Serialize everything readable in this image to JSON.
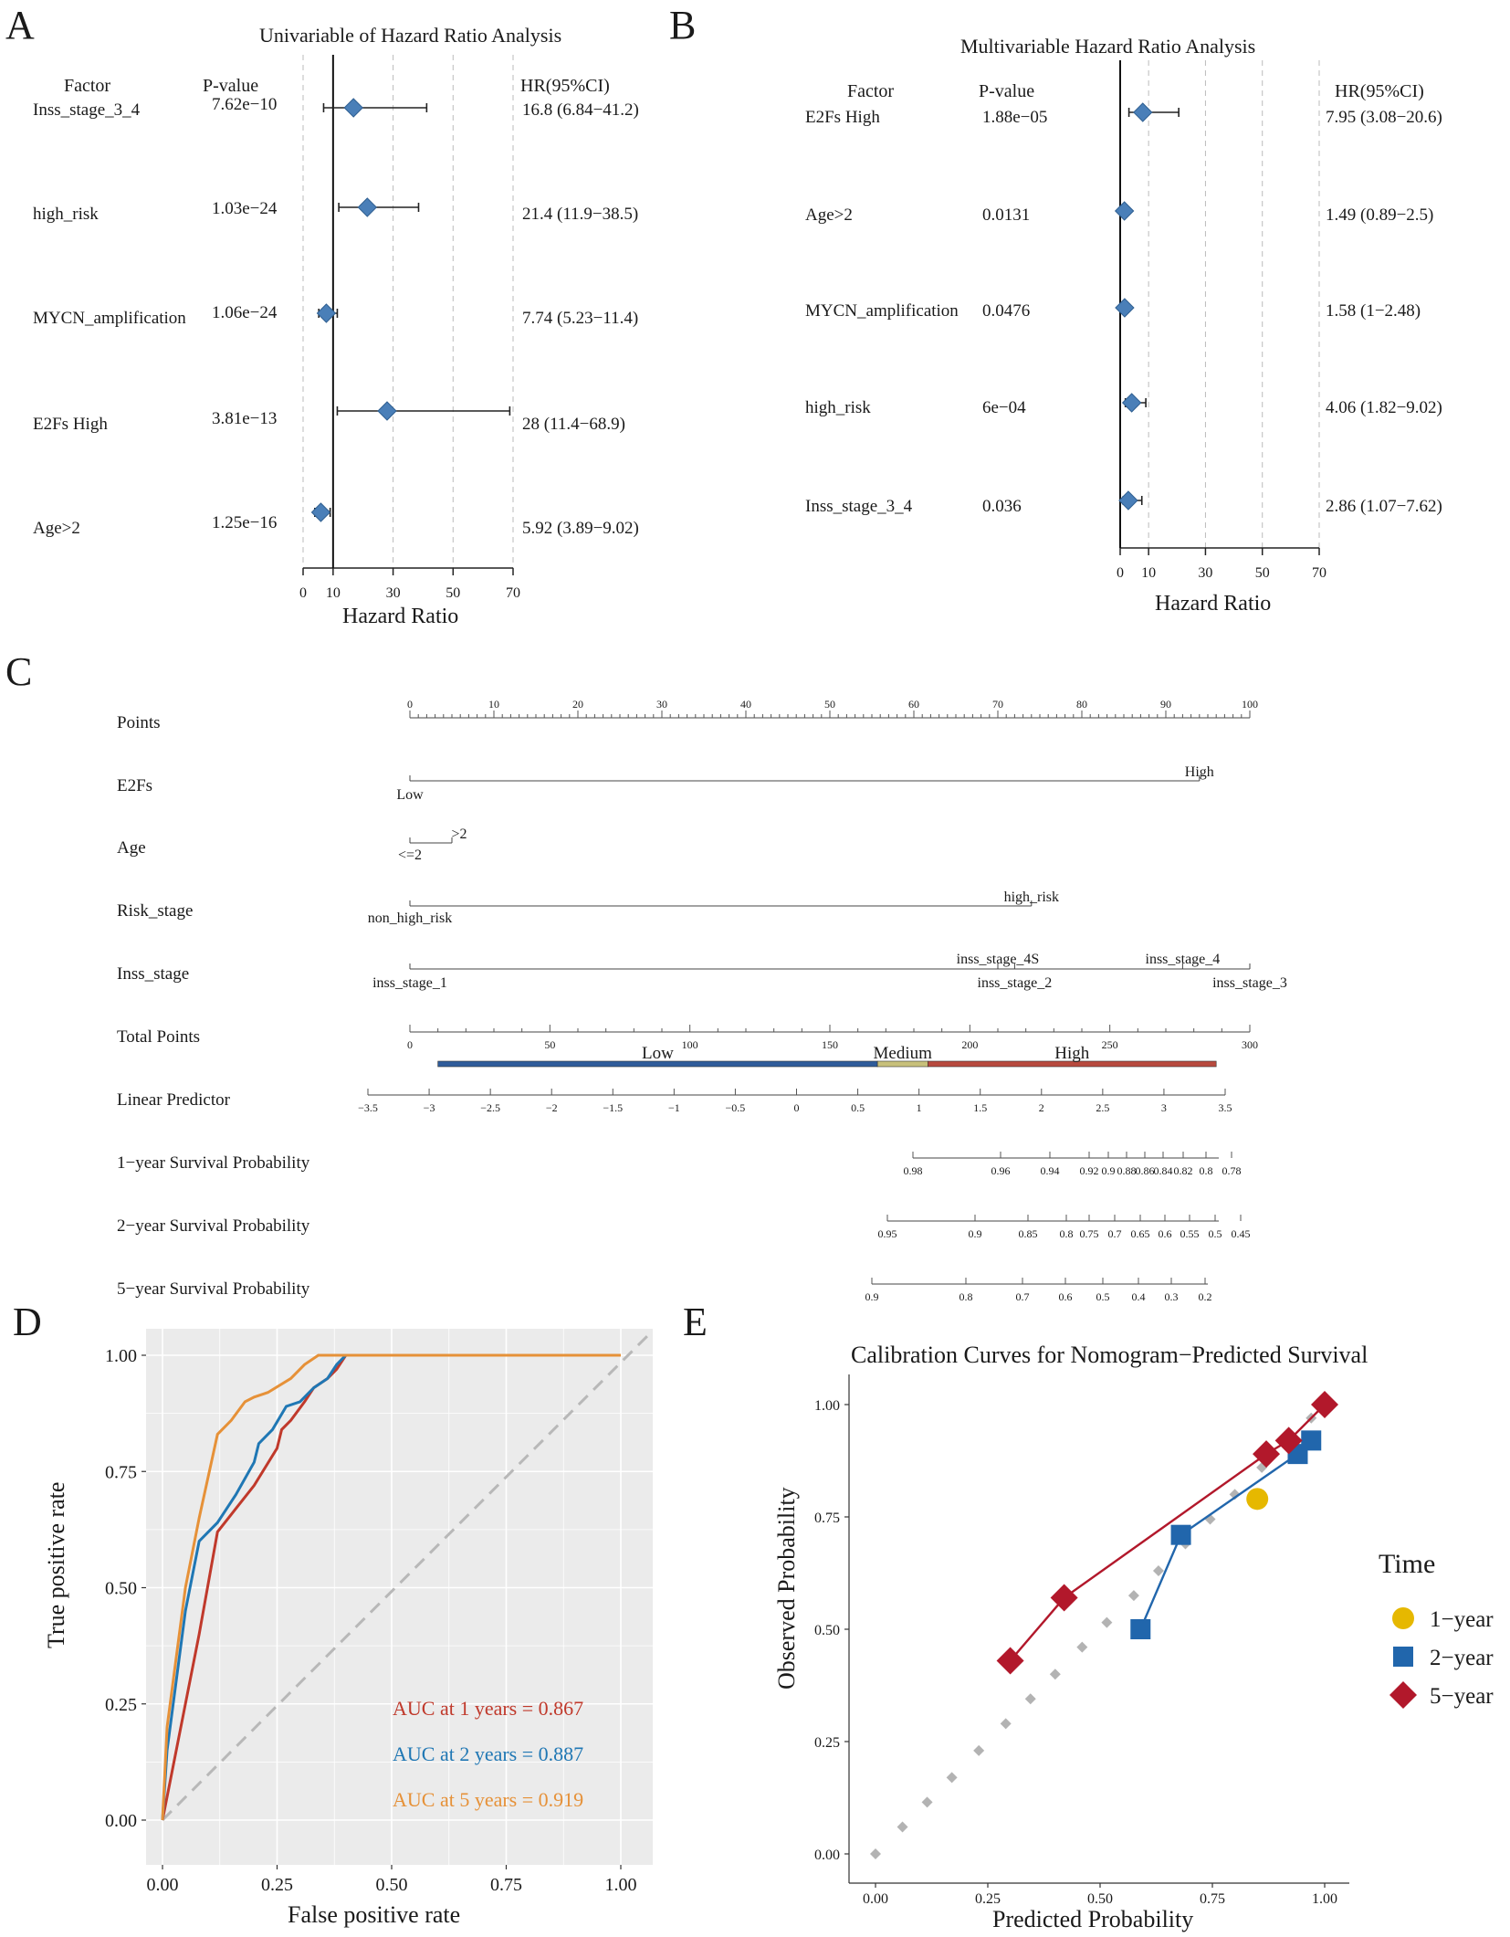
{
  "panels": {
    "a": "A",
    "b": "B",
    "c": "C",
    "d": "D",
    "e": "E"
  },
  "chart_data": [
    {
      "id": "A",
      "type": "forest",
      "title": "Univariable of Hazard Ratio Analysis",
      "headers": {
        "factor": "Factor",
        "pvalue": "P-value",
        "hr": "HR(95%CI)"
      },
      "xlabel": "Hazard Ratio",
      "xticks": [
        0,
        10,
        30,
        50,
        70
      ],
      "xlim": [
        0,
        70
      ],
      "reference": 10,
      "rows": [
        {
          "factor": "Inss_stage_3_4",
          "pvalue": "7.62e−10",
          "hr_text": "16.8 (6.84−41.2)",
          "hr": 16.8,
          "lo": 6.84,
          "hi": 41.2
        },
        {
          "factor": "high_risk",
          "pvalue": "1.03e−24",
          "hr_text": "21.4 (11.9−38.5)",
          "hr": 21.4,
          "lo": 11.9,
          "hi": 38.5
        },
        {
          "factor": "MYCN_amplification",
          "pvalue": "1.06e−24",
          "hr_text": "7.74 (5.23−11.4)",
          "hr": 7.74,
          "lo": 5.23,
          "hi": 11.4
        },
        {
          "factor": "E2Fs High",
          "pvalue": "3.81e−13",
          "hr_text": "28 (11.4−68.9)",
          "hr": 28,
          "lo": 11.4,
          "hi": 68.9
        },
        {
          "factor": "Age>2",
          "pvalue": "1.25e−16",
          "hr_text": "5.92 (3.89−9.02)",
          "hr": 5.92,
          "lo": 3.89,
          "hi": 9.02
        }
      ]
    },
    {
      "id": "B",
      "type": "forest",
      "title": "Multivariable Hazard Ratio Analysis",
      "headers": {
        "factor": "Factor",
        "pvalue": "P-value",
        "hr": "HR(95%CI)"
      },
      "xlabel": "Hazard Ratio",
      "xticks": [
        0,
        10,
        30,
        50,
        70
      ],
      "xlim": [
        0,
        70
      ],
      "reference": 0,
      "rows": [
        {
          "factor": "E2Fs High",
          "pvalue": "1.88e−05",
          "hr_text": "7.95 (3.08−20.6)",
          "hr": 7.95,
          "lo": 3.08,
          "hi": 20.6
        },
        {
          "factor": "Age>2",
          "pvalue": "0.0131",
          "hr_text": "1.49 (0.89−2.5)",
          "hr": 1.49,
          "lo": 0.89,
          "hi": 2.5
        },
        {
          "factor": "MYCN_amplification",
          "pvalue": "0.0476",
          "hr_text": "1.58 (1−2.48)",
          "hr": 1.58,
          "lo": 1.0,
          "hi": 2.48
        },
        {
          "factor": "high_risk",
          "pvalue": "6e−04",
          "hr_text": "4.06 (1.82−9.02)",
          "hr": 4.06,
          "lo": 1.82,
          "hi": 9.02
        },
        {
          "factor": "Inss_stage_3_4",
          "pvalue": "0.036",
          "hr_text": "2.86 (1.07−7.62)",
          "hr": 2.86,
          "lo": 1.07,
          "hi": 7.62
        }
      ]
    },
    {
      "id": "C",
      "type": "nomogram",
      "points_label": "Points",
      "points_ticks": [
        "0",
        "10",
        "20",
        "30",
        "40",
        "50",
        "60",
        "70",
        "80",
        "90",
        "100"
      ],
      "variables": [
        {
          "name": "E2Fs",
          "levels": [
            {
              "label": "Low",
              "points": 0
            },
            {
              "label": "High",
              "points": 94
            }
          ]
        },
        {
          "name": "Age",
          "levels": [
            {
              "label": "<=2",
              "points": 0
            },
            {
              "label": ">2",
              "points": 5
            }
          ]
        },
        {
          "name": "Risk_stage",
          "levels": [
            {
              "label": "non_high_risk",
              "points": 0
            },
            {
              "label": "high_risk",
              "points": 74
            }
          ]
        },
        {
          "name": "Inss_stage",
          "levels": [
            {
              "label": "inss_stage_1",
              "points": 0
            },
            {
              "label": "inss_stage_4S",
              "points": 70
            },
            {
              "label": "inss_stage_2",
              "points": 72
            },
            {
              "label": "inss_stage_4",
              "points": 92
            },
            {
              "label": "inss_stage_3",
              "points": 100
            }
          ]
        }
      ],
      "total_points_label": "Total Points",
      "total_points_ticks": [
        "0",
        "50",
        "100",
        "150",
        "200",
        "250",
        "300"
      ],
      "risk_groups": [
        {
          "label": "Low",
          "from": 10,
          "to": 167,
          "color": "#2f5c9a"
        },
        {
          "label": "Medium",
          "from": 167,
          "to": 185,
          "color": "#c8c07a"
        },
        {
          "label": "High",
          "from": 185,
          "to": 288,
          "color": "#b84a3e"
        }
      ],
      "linear_predictor_label": "Linear Predictor",
      "linear_predictor_ticks": [
        "−3.5",
        "−3",
        "−2.5",
        "−2",
        "−1.5",
        "−1",
        "−0.5",
        "0",
        "0.5",
        "1",
        "1.5",
        "2",
        "2.5",
        "3",
        "3.5"
      ],
      "survival_scales": [
        {
          "label": "1−year Survival Probability",
          "ticks": [
            "0.98",
            "0.96",
            "0.94",
            "0.92",
            "0.9",
            "0.88",
            "0.86",
            "0.84",
            "0.82",
            "0.8",
            "0.78"
          ]
        },
        {
          "label": "2−year Survival Probability",
          "ticks": [
            "0.95",
            "0.9",
            "0.85",
            "0.8",
            "0.75",
            "0.7",
            "0.65",
            "0.6",
            "0.55",
            "0.5",
            "0.45"
          ]
        },
        {
          "label": "5−year Survival Probability",
          "ticks": [
            "0.9",
            "0.8",
            "0.7",
            "0.6",
            "0.5",
            "0.4",
            "0.3",
            "0.2"
          ]
        }
      ]
    },
    {
      "id": "D",
      "type": "line",
      "xlabel": "False positive rate",
      "ylabel": "True positive rate",
      "xlim": [
        0,
        1
      ],
      "ylim": [
        0,
        1
      ],
      "xticks": [
        "0.00",
        "0.25",
        "0.50",
        "0.75",
        "1.00"
      ],
      "yticks": [
        "0.00",
        "0.25",
        "0.50",
        "0.75",
        "1.00"
      ],
      "series": [
        {
          "name": "AUC at 1 years = 0.867",
          "color": "#c0392b",
          "x": [
            0,
            0.02,
            0.05,
            0.08,
            0.12,
            0.16,
            0.2,
            0.25,
            0.26,
            0.28,
            0.31,
            0.33,
            0.36,
            0.38,
            0.4,
            1.0
          ],
          "y": [
            0,
            0.1,
            0.25,
            0.4,
            0.62,
            0.67,
            0.72,
            0.8,
            0.84,
            0.86,
            0.9,
            0.93,
            0.95,
            0.97,
            1.0,
            1.0
          ]
        },
        {
          "name": "AUC at 2 years = 0.887",
          "color": "#1f77b4",
          "x": [
            0,
            0.01,
            0.03,
            0.05,
            0.08,
            0.12,
            0.16,
            0.2,
            0.21,
            0.24,
            0.27,
            0.3,
            0.33,
            0.36,
            0.38,
            0.4,
            1.0
          ],
          "y": [
            0,
            0.15,
            0.3,
            0.45,
            0.6,
            0.64,
            0.7,
            0.77,
            0.81,
            0.84,
            0.89,
            0.9,
            0.93,
            0.95,
            0.98,
            1.0,
            1.0
          ]
        },
        {
          "name": "AUC at 5 years = 0.919",
          "color": "#e69138",
          "x": [
            0,
            0.01,
            0.03,
            0.05,
            0.08,
            0.12,
            0.15,
            0.18,
            0.2,
            0.23,
            0.28,
            0.31,
            0.34,
            1.0
          ],
          "y": [
            0,
            0.2,
            0.35,
            0.5,
            0.65,
            0.83,
            0.86,
            0.9,
            0.91,
            0.92,
            0.95,
            0.98,
            1.0,
            1.0
          ]
        }
      ]
    },
    {
      "id": "E",
      "type": "scatter",
      "title": "Calibration Curves for Nomogram−Predicted Survival",
      "xlabel": "Predicted Probability",
      "ylabel": "Observed Probability",
      "xlim": [
        0,
        1
      ],
      "ylim": [
        0,
        1
      ],
      "xticks": [
        "0.00",
        "0.25",
        "0.50",
        "0.75",
        "1.00"
      ],
      "yticks": [
        "0.00",
        "0.25",
        "0.50",
        "0.75",
        "1.00"
      ],
      "legend_title": "Time",
      "series": [
        {
          "name": "1−year",
          "color": "#e6b800",
          "shape": "circle",
          "x": [
            0.85
          ],
          "y": [
            0.79
          ]
        },
        {
          "name": "2−year",
          "color": "#2166ac",
          "shape": "square",
          "x": [
            0.59,
            0.68,
            0.94,
            0.97
          ],
          "y": [
            0.5,
            0.71,
            0.89,
            0.92
          ]
        },
        {
          "name": "5−year",
          "color": "#b2182b",
          "shape": "diamond",
          "x": [
            0.3,
            0.42,
            0.87,
            0.92,
            1.0
          ],
          "y": [
            0.43,
            0.57,
            0.89,
            0.92,
            1.0
          ]
        }
      ],
      "reference_points": [
        0,
        0.06,
        0.115,
        0.17,
        0.23,
        0.29,
        0.345,
        0.4,
        0.46,
        0.515,
        0.575,
        0.63,
        0.69,
        0.745,
        0.8,
        0.86,
        0.915,
        0.97,
        1.0
      ]
    }
  ]
}
